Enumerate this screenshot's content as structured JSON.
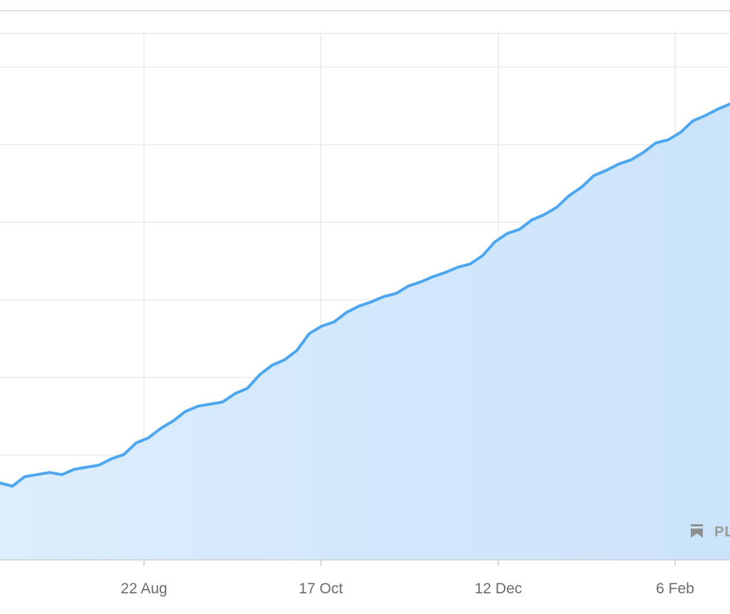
{
  "chart_data": {
    "type": "area",
    "title": "",
    "xlabel": "",
    "ylabel": "",
    "grid": true,
    "x_tick_labels": [
      "22 Aug",
      "17 Oct",
      "12 Dec",
      "6 Feb"
    ],
    "series": [
      {
        "color": "#4da6f0",
        "fill": "#d6e9fb",
        "values": [
          32.3,
          32.0,
          32.9,
          33.1,
          33.3,
          33.1,
          33.6,
          33.8,
          34.0,
          34.6,
          35.0,
          36.1,
          36.6,
          37.5,
          38.2,
          39.1,
          39.6,
          39.8,
          40.0,
          40.8,
          41.3,
          42.6,
          43.5,
          44.0,
          44.9,
          46.5,
          47.2,
          47.6,
          48.5,
          49.1,
          49.5,
          50.0,
          50.3,
          51.0,
          51.4,
          51.9,
          52.3,
          52.8,
          53.1,
          53.9,
          55.2,
          56.0,
          56.4,
          57.3,
          57.8,
          58.5,
          59.6,
          60.4,
          61.5,
          62.0,
          62.6,
          63.0,
          63.7,
          64.6,
          64.9,
          65.6,
          66.7,
          67.2,
          67.8,
          68.3
        ]
      }
    ],
    "watermark": "PL"
  }
}
